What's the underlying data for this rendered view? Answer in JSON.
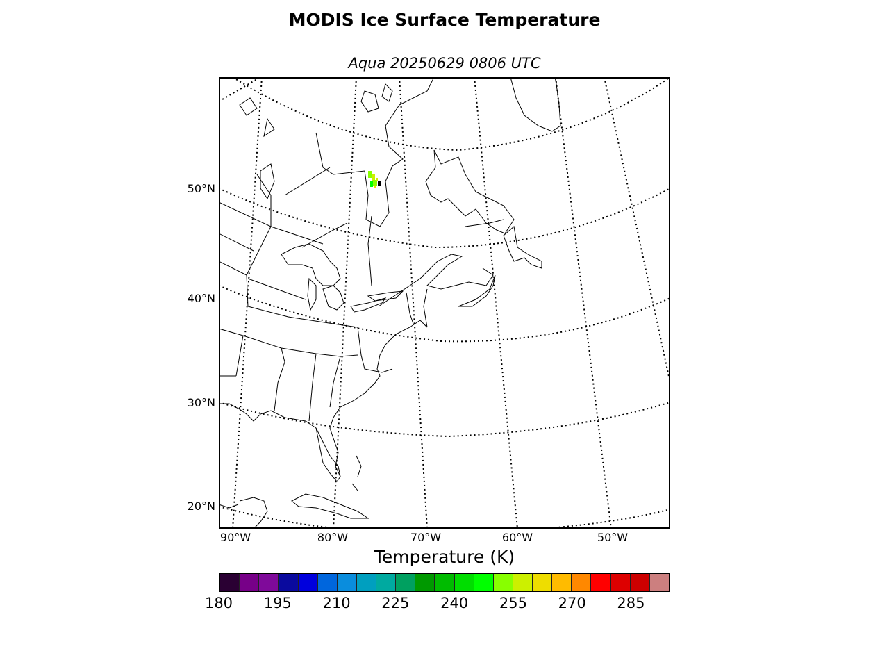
{
  "figure": {
    "title": "MODIS Ice Surface Temperature",
    "subtitle": "Aqua 20250629 0806 UTC"
  },
  "map": {
    "projection": "lambert-conformal",
    "extent": {
      "lon_min": -92,
      "lon_max": -44,
      "lat_min": 18,
      "lat_max": 60
    },
    "lat_labels": [
      "50°N",
      "40°N",
      "30°N",
      "20°N"
    ],
    "lon_labels": [
      "90°W",
      "80°W",
      "70°W",
      "60°W",
      "50°W"
    ],
    "graticule_style": "dotted",
    "features": [
      "coastlines",
      "country-borders",
      "state-borders"
    ],
    "data_note": "small patch of ice-surface temperature pixels (~250-260 K) near eastern Hudson Bay"
  },
  "chart_data": {
    "type": "heatmap",
    "colorbar_label": "Temperature (K)",
    "range": [
      180,
      295
    ],
    "step": 5,
    "tick_labels": [
      "180",
      "195",
      "210",
      "225",
      "240",
      "255",
      "270",
      "285"
    ],
    "colors": [
      "#2a0033",
      "#770088",
      "#7f0a9a",
      "#0a0a9e",
      "#0000dd",
      "#0066dd",
      "#0a8ddd",
      "#009fbf",
      "#00aaa0",
      "#00a060",
      "#009900",
      "#00bb00",
      "#00dd00",
      "#00ff00",
      "#88ff00",
      "#ccf000",
      "#eedd00",
      "#ffbb00",
      "#ff8800",
      "#ff0000",
      "#dd0000",
      "#cc0000",
      "#cc7f7f"
    ]
  }
}
